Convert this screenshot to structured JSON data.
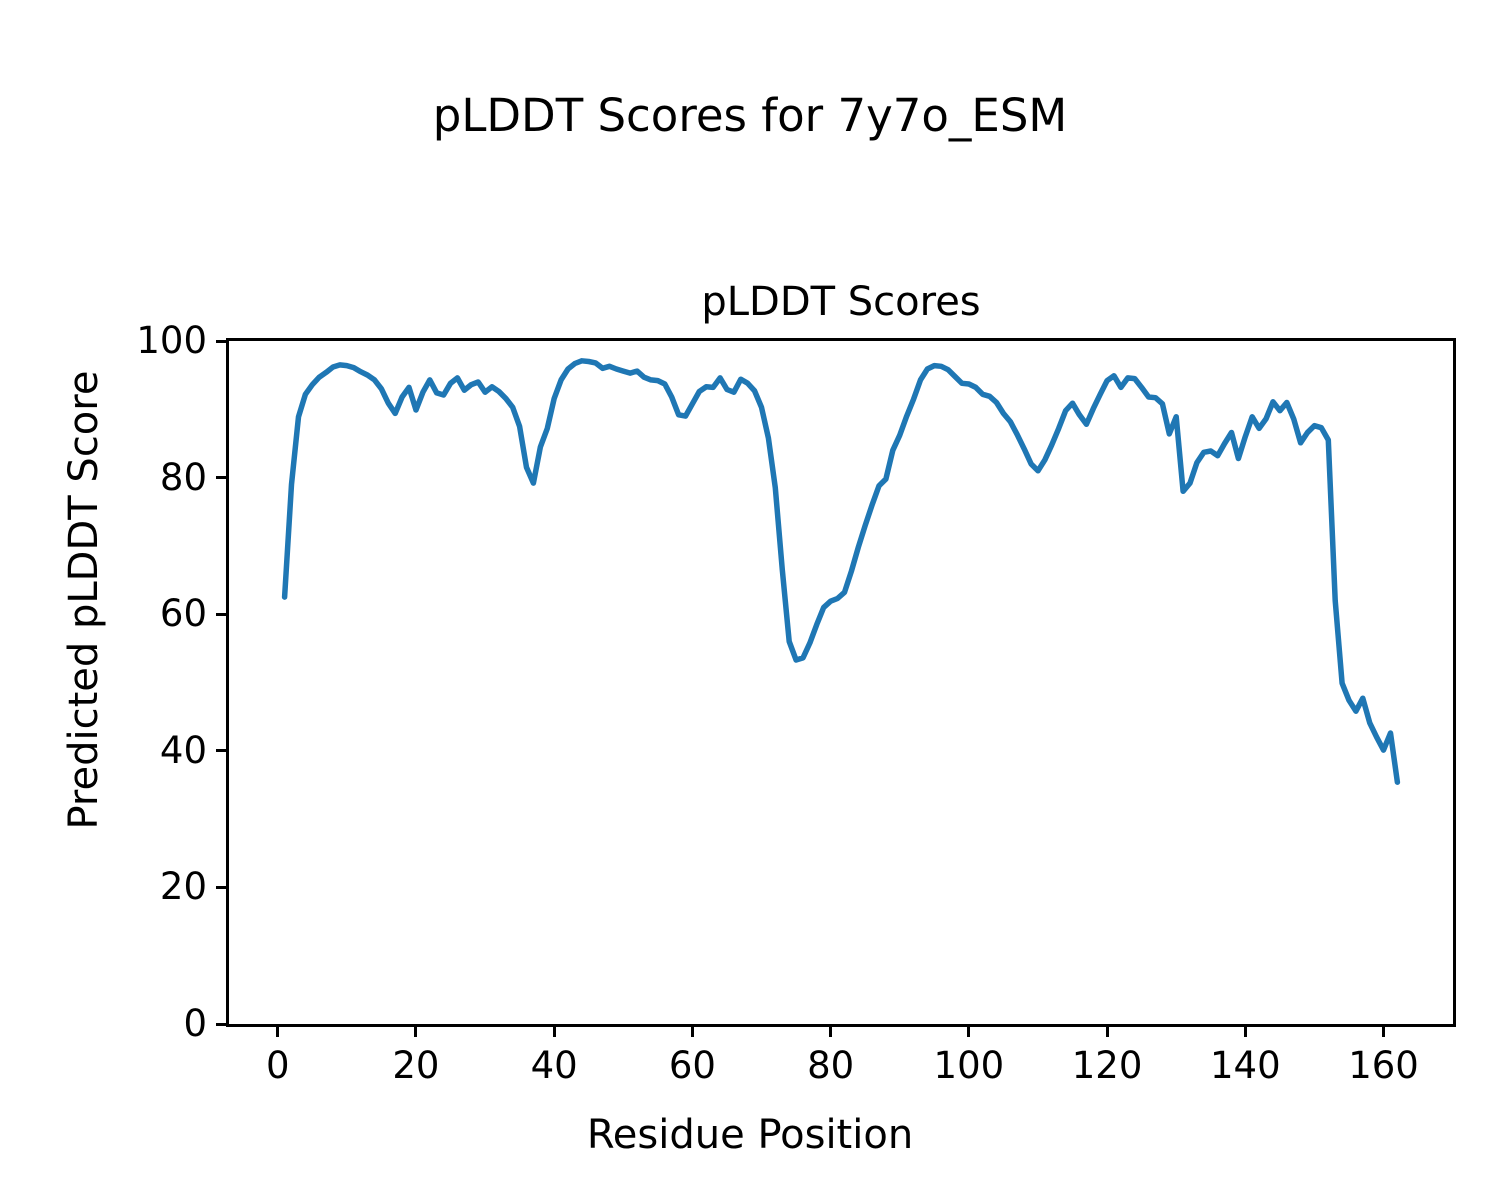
{
  "figure": {
    "suptitle": "pLDDT Scores for 7y7o_ESM",
    "background_color": "#ffffff",
    "text_color": "#000000"
  },
  "chart_data": {
    "type": "line",
    "title": "pLDDT Scores",
    "xlabel": "Residue Position",
    "ylabel": "Predicted pLDDT Score",
    "series_name": "pLDDT",
    "line_color": "#1f77b4",
    "line_width": 5.5,
    "grid": false,
    "legend_position": "none",
    "xlim": [
      -7.05,
      170.05
    ],
    "ylim": [
      0,
      100
    ],
    "xticks": [
      0,
      20,
      40,
      60,
      80,
      100,
      120,
      140,
      160
    ],
    "yticks": [
      0,
      20,
      40,
      60,
      80,
      100
    ],
    "x_start": 1,
    "x_step": 1,
    "n_points": 162,
    "values": [
      62.5,
      79.0,
      88.9,
      92.2,
      93.6,
      94.7,
      95.4,
      96.2,
      96.5,
      96.4,
      96.1,
      95.5,
      95.0,
      94.3,
      93.0,
      90.9,
      89.4,
      91.8,
      93.2,
      89.9,
      92.5,
      94.3,
      92.4,
      92.1,
      93.8,
      94.6,
      92.8,
      93.6,
      94.0,
      92.5,
      93.3,
      92.6,
      91.6,
      90.3,
      87.5,
      81.5,
      79.2,
      84.5,
      87.2,
      91.6,
      94.3,
      95.9,
      96.7,
      97.1,
      97.0,
      96.8,
      96.0,
      96.3,
      95.9,
      95.6,
      95.3,
      95.6,
      94.7,
      94.3,
      94.2,
      93.7,
      91.8,
      89.2,
      89.0,
      90.8,
      92.6,
      93.3,
      93.2,
      94.6,
      92.9,
      92.5,
      94.4,
      93.8,
      92.7,
      90.3,
      85.8,
      78.5,
      66.5,
      56.0,
      53.3,
      53.6,
      55.8,
      58.5,
      61.0,
      61.9,
      62.3,
      63.2,
      66.3,
      69.8,
      73.0,
      76.0,
      78.8,
      79.8,
      84.0,
      86.2,
      89.0,
      91.5,
      94.3,
      95.9,
      96.4,
      96.3,
      95.8,
      94.8,
      93.8,
      93.7,
      93.2,
      92.2,
      91.9,
      91.0,
      89.4,
      88.2,
      86.3,
      84.2,
      82.0,
      81.0,
      82.6,
      84.8,
      87.2,
      89.8,
      90.9,
      89.2,
      87.8,
      90.1,
      92.2,
      94.2,
      94.9,
      93.2,
      94.6,
      94.5,
      93.2,
      91.8,
      91.7,
      90.8,
      86.4,
      88.9,
      78.0,
      79.2,
      82.2,
      83.7,
      83.9,
      83.2,
      85.0,
      86.6,
      82.8,
      86.0,
      88.9,
      87.2,
      88.6,
      91.1,
      89.8,
      91.0,
      88.6,
      85.1,
      86.6,
      87.6,
      87.3,
      85.5,
      62.0,
      49.9,
      47.4,
      45.8,
      47.7,
      44.1,
      42.0,
      40.1,
      42.6,
      35.4
    ]
  }
}
